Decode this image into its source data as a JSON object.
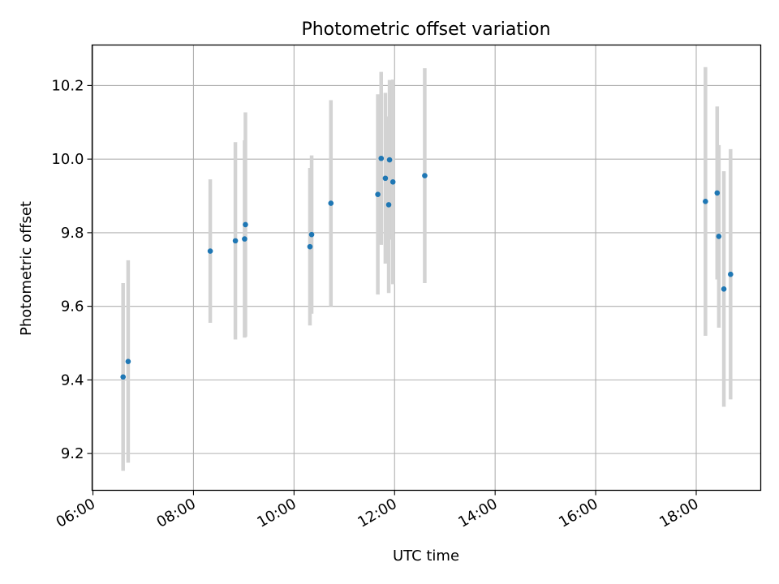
{
  "chart_data": {
    "type": "scatter",
    "title": "Photometric offset variation",
    "xlabel": "UTC time",
    "ylabel": "Photometric offset",
    "grid": true,
    "errorbar_color": "#d3d3d3",
    "point_color": "#1f77b4",
    "x_ticks": [
      "06:00",
      "08:00",
      "10:00",
      "12:00",
      "14:00",
      "16:00",
      "18:00"
    ],
    "y_ticks": [
      "9.2",
      "9.4",
      "9.6",
      "9.8",
      "10.0",
      "10.2"
    ],
    "xlim": [
      "05:59",
      "19:17"
    ],
    "ylim": [
      9.1,
      10.31
    ],
    "points": [
      {
        "x": "06:36",
        "y": 9.408,
        "yerr": 0.255
      },
      {
        "x": "06:42",
        "y": 9.45,
        "yerr": 0.275
      },
      {
        "x": "08:20",
        "y": 9.75,
        "yerr": 0.195
      },
      {
        "x": "08:50",
        "y": 9.778,
        "yerr": 0.268
      },
      {
        "x": "09:01",
        "y": 9.783,
        "yerr": 0.268
      },
      {
        "x": "09:02",
        "y": 9.822,
        "yerr": 0.305
      },
      {
        "x": "10:19",
        "y": 9.762,
        "yerr": 0.214
      },
      {
        "x": "10:21",
        "y": 9.795,
        "yerr": 0.215
      },
      {
        "x": "10:44",
        "y": 9.88,
        "yerr": 0.28
      },
      {
        "x": "11:40",
        "y": 9.904,
        "yerr": 0.272
      },
      {
        "x": "11:44",
        "y": 10.002,
        "yerr": 0.235
      },
      {
        "x": "11:49",
        "y": 9.948,
        "yerr": 0.232
      },
      {
        "x": "11:53",
        "y": 9.876,
        "yerr": 0.24
      },
      {
        "x": "11:54",
        "y": 9.998,
        "yerr": 0.217
      },
      {
        "x": "11:58",
        "y": 9.938,
        "yerr": 0.278
      },
      {
        "x": "12:36",
        "y": 9.955,
        "yerr": 0.292
      },
      {
        "x": "18:11",
        "y": 9.885,
        "yerr": 0.365
      },
      {
        "x": "18:25",
        "y": 9.908,
        "yerr": 0.235
      },
      {
        "x": "18:27",
        "y": 9.79,
        "yerr": 0.248
      },
      {
        "x": "18:33",
        "y": 9.647,
        "yerr": 0.32
      },
      {
        "x": "18:41",
        "y": 9.687,
        "yerr": 0.34
      }
    ]
  }
}
